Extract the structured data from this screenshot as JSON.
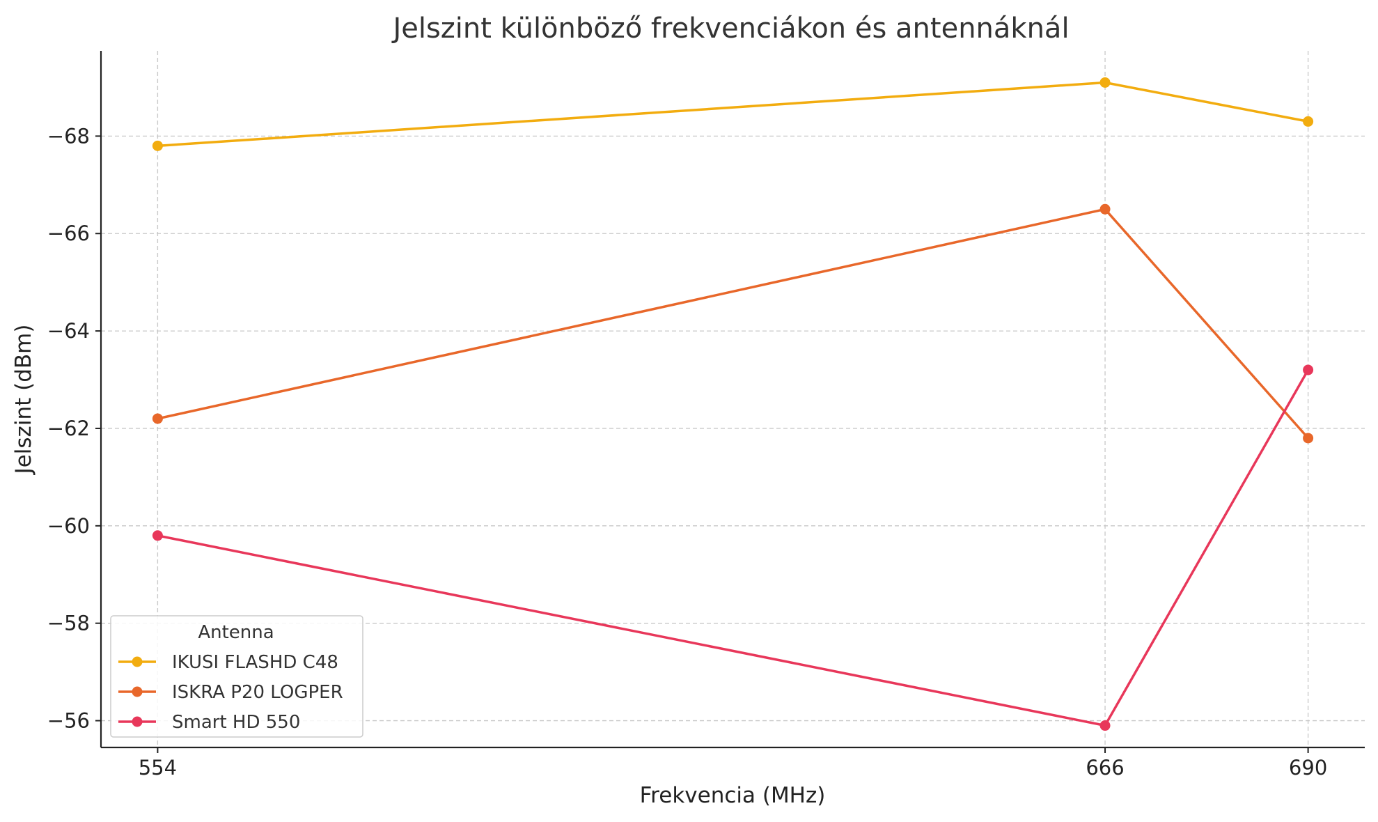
{
  "chart_data": {
    "type": "line",
    "title": "Jelszint különböző frekvenciákon és antennáknál",
    "xlabel": "Frekvencia (MHz)",
    "ylabel": "Jelszint (dBm)",
    "x": [
      554,
      666,
      690
    ],
    "x_tick_labels": [
      "554",
      "666",
      "690"
    ],
    "y_ticks": [
      -68,
      -66,
      -64,
      -62,
      -60,
      -58,
      -56
    ],
    "y_tick_labels": [
      "−68",
      "−66",
      "−64",
      "−62",
      "−60",
      "−58",
      "−56"
    ],
    "xlim": [
      547.3,
      696.7
    ],
    "ylim": [
      -55.45,
      -69.75
    ],
    "grid": true,
    "legend": {
      "title": "Antenna",
      "placement": "lower-left"
    },
    "series": [
      {
        "name": "IKUSI FLASHD C48",
        "color": "#f2ac0f",
        "values": [
          -67.8,
          -69.1,
          -68.3
        ]
      },
      {
        "name": "ISKRA P20 LOGPER",
        "color": "#e8672a",
        "values": [
          -62.2,
          -66.5,
          -61.8
        ]
      },
      {
        "name": "Smart HD 550",
        "color": "#e8375a",
        "values": [
          -59.8,
          -55.9,
          -63.2
        ]
      }
    ]
  }
}
